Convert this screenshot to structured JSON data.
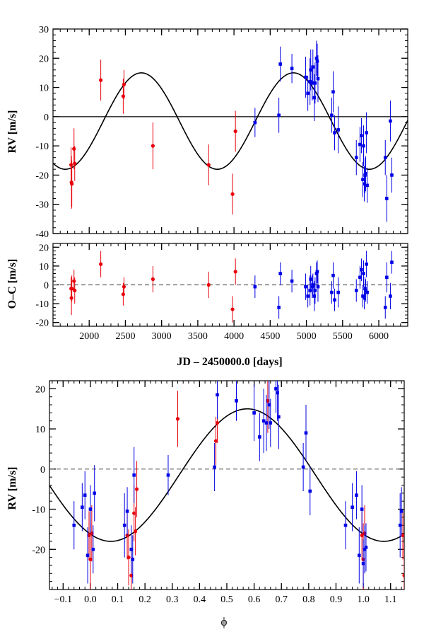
{
  "chart_data": [
    {
      "panel": "top",
      "type": "scatter",
      "xlabel": "",
      "ylabel": "RV [m/s]",
      "xlim": [
        1500,
        6400
      ],
      "ylim": [
        -40,
        30
      ],
      "grid": false,
      "xticks": [
        2000,
        2500,
        3000,
        3500,
        4000,
        4500,
        5000,
        5500,
        6000
      ],
      "yticks": [
        -40,
        -30,
        -20,
        -10,
        0,
        10,
        20,
        30
      ],
      "model": {
        "type": "sine",
        "period": 2100,
        "amplitude": 16.5,
        "offset": -1.5,
        "x_max": 2720
      },
      "zero_line": {
        "y": 0,
        "style": "solid"
      },
      "series": [
        {
          "name": "red",
          "color": "#e8000b",
          "x": [
            1750,
            1755,
            1760,
            1790,
            1800,
            2160,
            2470,
            2480,
            2880,
            3650,
            3980,
            4020
          ],
          "y": [
            -16.5,
            -22.5,
            -23,
            -11,
            -16,
            12.5,
            7,
            11,
            -10,
            -16.5,
            -26.5,
            -5
          ],
          "err": [
            6,
            9,
            8,
            7,
            6,
            7,
            6,
            5,
            8,
            7,
            7,
            7
          ]
        },
        {
          "name": "blue",
          "color": "#0000e6",
          "x": [
            4290,
            4620,
            4640,
            4800,
            4990,
            5020,
            5050,
            5060,
            5080,
            5090,
            5110,
            5120,
            5140,
            5150,
            5160,
            5350,
            5370,
            5390,
            5440,
            5690,
            5740,
            5760,
            5780,
            5790,
            5800,
            5810,
            5820,
            5830,
            5840,
            6090,
            6110,
            6160,
            6180
          ],
          "y": [
            -2,
            0.5,
            18,
            16.5,
            13.5,
            8,
            12,
            16,
            11.5,
            17,
            6.5,
            11.5,
            20,
            19,
            13,
            0.5,
            8.5,
            -5.5,
            -4.5,
            -14,
            -9.5,
            -6.5,
            -21.5,
            -10,
            -23,
            -20,
            -19.5,
            -5.5,
            -23.5,
            -14,
            -28,
            -1.5,
            -20
          ],
          "err": [
            5,
            6,
            6,
            5,
            7,
            6,
            8,
            7,
            6,
            6,
            8,
            7,
            6,
            6,
            8,
            6,
            7,
            6,
            8,
            6,
            6,
            6,
            6,
            7,
            6,
            6,
            6,
            7,
            6,
            6,
            8,
            7,
            6
          ]
        }
      ]
    },
    {
      "panel": "middle",
      "type": "scatter",
      "xlabel": "JD – 2450000.0 [days]",
      "ylabel": "O–C [m/s]",
      "xlim": [
        1500,
        6400
      ],
      "ylim": [
        -22,
        22
      ],
      "grid": false,
      "xticks": [
        2000,
        2500,
        3000,
        3500,
        4000,
        4500,
        5000,
        5500,
        6000
      ],
      "yticks": [
        -20,
        -10,
        0,
        10,
        20
      ],
      "zero_line": {
        "y": 0,
        "style": "dashed"
      },
      "series": [
        {
          "name": "red",
          "color": "#e8000b",
          "x": [
            1750,
            1755,
            1760,
            1790,
            1800,
            2160,
            2470,
            2480,
            2880,
            3650,
            3980,
            4020
          ],
          "y": [
            -2,
            -7,
            -2,
            2,
            -3,
            11,
            -5,
            -1,
            3,
            0,
            -13,
            7
          ],
          "err": [
            6,
            9,
            7,
            6,
            7,
            7,
            6,
            5,
            7,
            7,
            7,
            7
          ]
        },
        {
          "name": "blue",
          "color": "#0000e6",
          "x": [
            4290,
            4620,
            4640,
            4800,
            4990,
            5020,
            5050,
            5060,
            5080,
            5090,
            5110,
            5120,
            5140,
            5150,
            5160,
            5350,
            5370,
            5390,
            5440,
            5690,
            5740,
            5760,
            5780,
            5790,
            5800,
            5810,
            5820,
            5830,
            5840,
            6090,
            6110,
            6160,
            6180
          ],
          "y": [
            -1,
            -12,
            6,
            2,
            -1,
            -6,
            -3,
            3,
            -1,
            0,
            -6,
            -3,
            6,
            7,
            -1,
            -4,
            5,
            -8,
            -4,
            -3,
            4,
            8,
            -6,
            6,
            -7,
            -2,
            -3,
            11,
            -4,
            -12,
            4,
            -6,
            12
          ],
          "err": [
            6,
            6,
            6,
            6,
            7,
            6,
            8,
            7,
            6,
            6,
            8,
            7,
            6,
            6,
            8,
            6,
            7,
            6,
            8,
            6,
            6,
            6,
            6,
            7,
            6,
            6,
            6,
            7,
            6,
            6,
            8,
            7,
            6
          ]
        }
      ]
    },
    {
      "panel": "bottom",
      "type": "scatter",
      "xlabel": "ϕ",
      "ylabel": "RV [m/s]",
      "xlim": [
        -0.15,
        1.15
      ],
      "ylim": [
        -30,
        22
      ],
      "grid": false,
      "xticks": [
        -0.1,
        0.0,
        0.1,
        0.2,
        0.3,
        0.4,
        0.5,
        0.6,
        0.7,
        0.8,
        0.9,
        1.0,
        1.1
      ],
      "xticklabels": [
        "−0.1",
        "0.0",
        "0.1",
        "0.2",
        "0.3",
        "0.4",
        "0.5",
        "0.6",
        "0.7",
        "0.8",
        "0.9",
        "1.0",
        "1.1"
      ],
      "yticks": [
        -20,
        -10,
        0,
        10,
        20
      ],
      "model": {
        "type": "sine",
        "period": 1.0,
        "amplitude": 16.5,
        "offset": -1.5,
        "x_max": 0.575
      },
      "zero_line": {
        "y": 0,
        "style": "dashed"
      },
      "series": [
        {
          "name": "red",
          "color": "#e8000b",
          "x": [
            -0.005,
            0.0,
            0.005,
            0.135,
            0.14,
            0.15,
            0.16,
            0.165,
            0.17,
            0.32,
            0.46,
            0.465,
            0.65,
            0.995,
            1.0,
            1.005,
            1.145,
            1.15
          ],
          "y": [
            -16.5,
            -22.5,
            -16,
            -16.5,
            -22,
            -26.5,
            -11,
            -15.5,
            -5,
            12.5,
            7,
            11.5,
            17,
            -16.5,
            -22.5,
            -16,
            -16.5,
            -26.5
          ],
          "err": [
            6,
            9,
            7,
            6,
            7,
            7,
            7,
            6,
            7,
            7,
            6,
            5,
            8,
            6,
            9,
            7,
            6,
            8
          ]
        },
        {
          "name": "blue",
          "color": "#0000e6",
          "x": [
            -0.06,
            -0.03,
            -0.02,
            -0.01,
            0.0,
            0.01,
            0.015,
            0.125,
            0.135,
            0.15,
            0.155,
            0.16,
            0.285,
            0.455,
            0.465,
            0.535,
            0.6,
            0.62,
            0.635,
            0.645,
            0.655,
            0.66,
            0.68,
            0.685,
            0.69,
            0.78,
            0.79,
            0.805,
            0.935,
            0.96,
            0.975,
            0.985,
            0.995,
            1.0,
            1.005,
            1.01,
            1.135,
            1.14
          ],
          "y": [
            -14,
            -9.5,
            -6.5,
            -21.5,
            -10,
            -20,
            -6,
            -14,
            -10.5,
            -20,
            -22.5,
            -1.5,
            -1.5,
            0.5,
            18.5,
            17,
            14,
            8,
            12,
            11.5,
            16,
            11.5,
            20,
            19,
            13,
            0.5,
            9,
            -5.5,
            -14,
            -9.5,
            -6.5,
            -21.5,
            -10,
            -23.5,
            -20,
            -19.5,
            -14,
            -10.5
          ],
          "err": [
            6,
            6,
            6,
            7,
            6,
            6,
            7,
            8,
            6,
            6,
            6,
            7,
            5,
            6,
            6,
            5,
            7,
            6,
            8,
            7,
            6,
            6,
            6,
            7,
            8,
            6,
            7,
            6,
            6,
            6,
            6,
            7,
            6,
            6,
            6,
            6,
            8,
            6
          ]
        }
      ]
    }
  ]
}
